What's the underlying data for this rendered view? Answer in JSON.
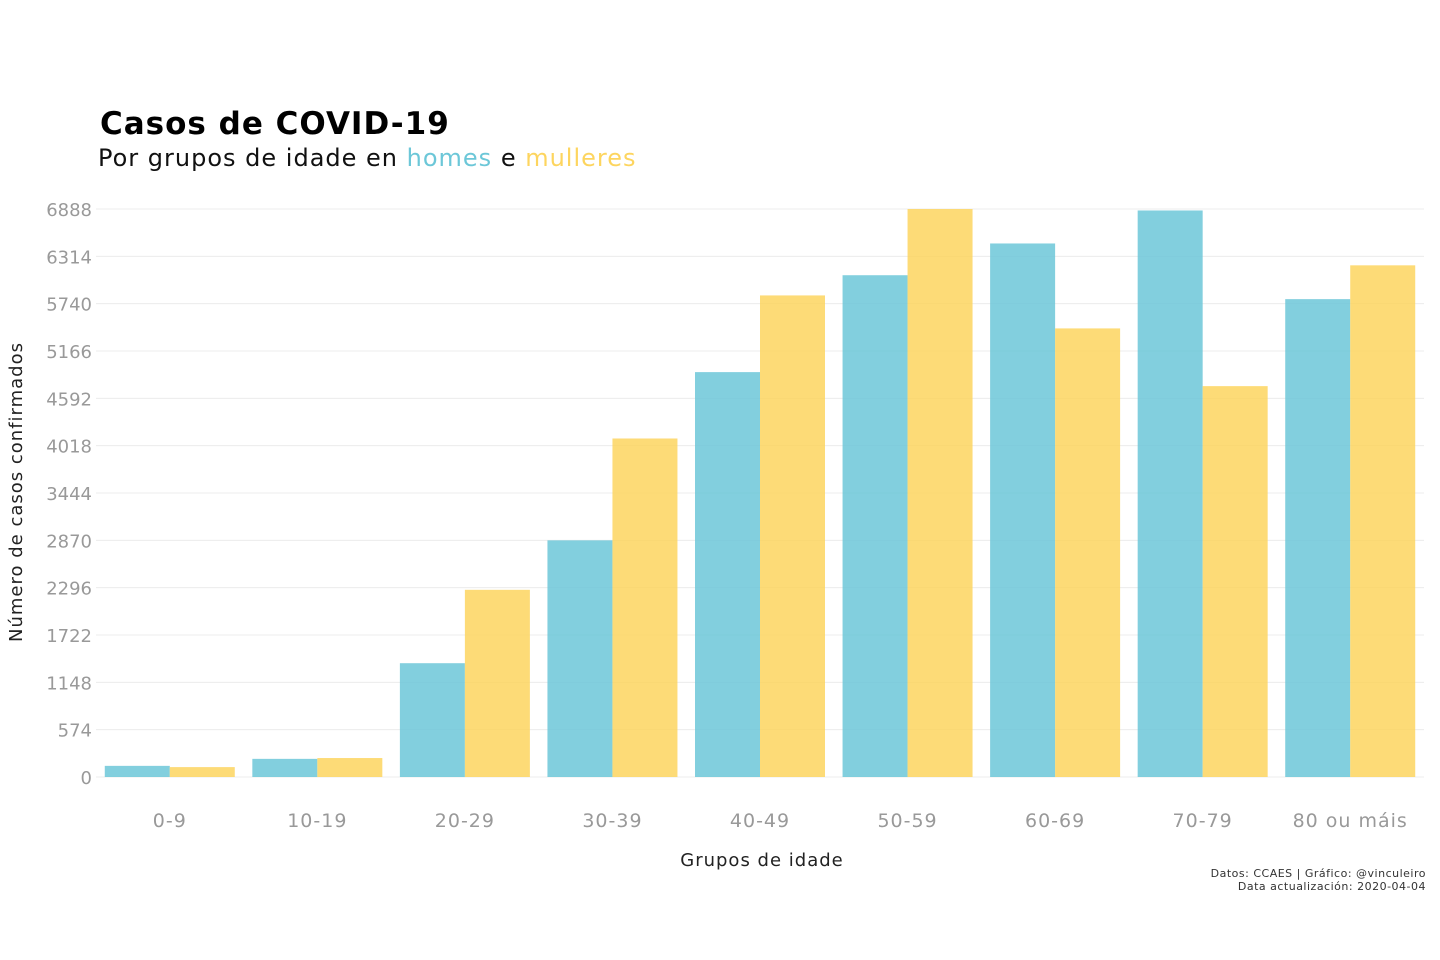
{
  "title": "Casos de COVID-19",
  "subtitle": {
    "prefix": "Por grupos de idade en ",
    "men_word": "homes",
    "middle": " e ",
    "women_word": "mulleres"
  },
  "caption": {
    "line1": "Datos: CCAES | Gráfico: @vinculeiro",
    "line2": "Data actualización: 2020-04-04"
  },
  "colors": {
    "men": "#6cc7d8",
    "women": "#fdd55f",
    "grid": "#ececec",
    "tick": "#999999"
  },
  "chart_data": {
    "type": "bar",
    "xlabel": "Grupos de idade",
    "ylabel": "Número de casos confirmados",
    "categories": [
      "0-9",
      "10-19",
      "20-29",
      "30-39",
      "40-49",
      "50-59",
      "60-69",
      "70-79",
      "80 ou máis"
    ],
    "series": [
      {
        "name": "homes",
        "values": [
          135,
          220,
          1380,
          2870,
          4910,
          6085,
          6470,
          6870,
          5795
        ]
      },
      {
        "name": "mulleres",
        "values": [
          120,
          230,
          2270,
          4105,
          5840,
          6888,
          5440,
          4740,
          6205
        ]
      }
    ],
    "yticks": [
      0,
      574,
      1148,
      1722,
      2296,
      2870,
      3444,
      4018,
      4592,
      5166,
      5740,
      6314,
      6888
    ],
    "ylim": [
      0,
      6888
    ],
    "grid": true,
    "legend": "none"
  }
}
